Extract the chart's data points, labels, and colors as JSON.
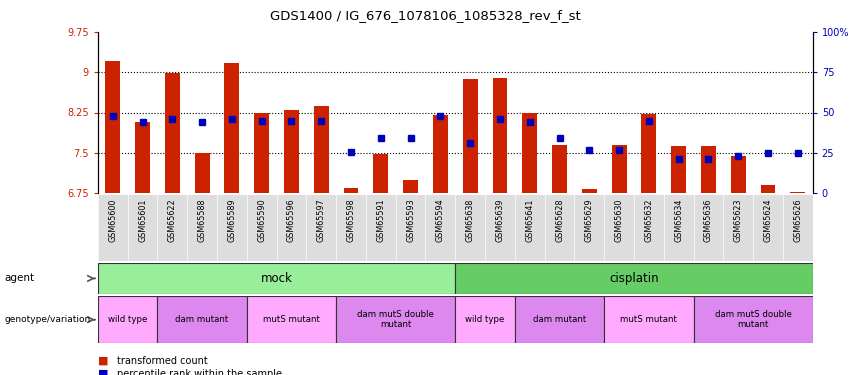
{
  "title": "GDS1400 / IG_676_1078106_1085328_rev_f_st",
  "samples": [
    "GSM65600",
    "GSM65601",
    "GSM65622",
    "GSM65588",
    "GSM65589",
    "GSM65590",
    "GSM65596",
    "GSM65597",
    "GSM65598",
    "GSM65591",
    "GSM65593",
    "GSM65594",
    "GSM65638",
    "GSM65639",
    "GSM65641",
    "GSM65628",
    "GSM65629",
    "GSM65630",
    "GSM65632",
    "GSM65634",
    "GSM65636",
    "GSM65623",
    "GSM65624",
    "GSM65626"
  ],
  "bar_heights": [
    9.2,
    8.08,
    8.98,
    7.5,
    9.18,
    8.25,
    8.3,
    8.38,
    6.85,
    7.48,
    7.0,
    8.2,
    8.88,
    8.9,
    8.25,
    7.65,
    6.82,
    7.65,
    8.23,
    7.62,
    7.62,
    7.45,
    6.9,
    6.77
  ],
  "percentile_y": [
    8.18,
    8.08,
    8.12,
    8.08,
    8.13,
    8.1,
    8.1,
    8.1,
    7.52,
    7.78,
    7.78,
    8.18,
    7.68,
    8.12,
    8.08,
    7.78,
    7.55,
    7.55,
    8.09,
    7.38,
    7.38,
    7.45,
    7.5,
    7.5
  ],
  "ymin": 6.75,
  "ymax": 9.75,
  "yticks_left": [
    6.75,
    7.5,
    8.25,
    9.0,
    9.75
  ],
  "ytick_labels_left": [
    "6.75",
    "7.5",
    "8.25",
    "9",
    "9.75"
  ],
  "yticks_right_pct": [
    0,
    25,
    50,
    75,
    100
  ],
  "ytick_labels_right": [
    "0",
    "25",
    "50",
    "75",
    "100%"
  ],
  "bar_color": "#CC2200",
  "pct_color": "#0000BB",
  "agent_groups": [
    {
      "label": "mock",
      "start": 0,
      "end": 11,
      "color": "#99EE99"
    },
    {
      "label": "cisplatin",
      "start": 12,
      "end": 23,
      "color": "#66CC66"
    }
  ],
  "genotype_groups": [
    {
      "label": "wild type",
      "start": 0,
      "end": 1,
      "color": "#FFAAFF"
    },
    {
      "label": "dam mutant",
      "start": 2,
      "end": 4,
      "color": "#DD88EE"
    },
    {
      "label": "mutS mutant",
      "start": 5,
      "end": 7,
      "color": "#FFAAFF"
    },
    {
      "label": "dam mutS double\nmutant",
      "start": 8,
      "end": 11,
      "color": "#DD88EE"
    },
    {
      "label": "wild type",
      "start": 12,
      "end": 13,
      "color": "#FFAAFF"
    },
    {
      "label": "dam mutant",
      "start": 14,
      "end": 16,
      "color": "#DD88EE"
    },
    {
      "label": "mutS mutant",
      "start": 17,
      "end": 19,
      "color": "#FFAAFF"
    },
    {
      "label": "dam mutS double\nmutant",
      "start": 20,
      "end": 23,
      "color": "#DD88EE"
    }
  ],
  "legend": [
    {
      "label": "transformed count",
      "color": "#CC2200"
    },
    {
      "label": "percentile rank within the sample",
      "color": "#0000BB"
    }
  ],
  "label_fontsize": 7.5,
  "tick_fontsize": 7.0,
  "sample_fontsize": 5.8
}
